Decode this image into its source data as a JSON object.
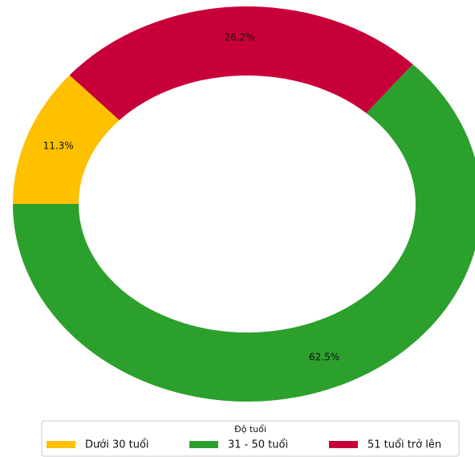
{
  "chart_data": {
    "type": "pie",
    "donut": true,
    "categories": [
      "Dưới 30 tuổi",
      "31 - 50 tuổi",
      "51 tuổi trở lên"
    ],
    "values": [
      11.3,
      62.5,
      26.2
    ],
    "value_labels": [
      "11.3%",
      "62.5%",
      "26.2%"
    ],
    "colors": [
      "#ffc000",
      "#2ca02c",
      "#c8003a"
    ],
    "legend_title": "Độ tuổi",
    "legend": "bottom"
  }
}
